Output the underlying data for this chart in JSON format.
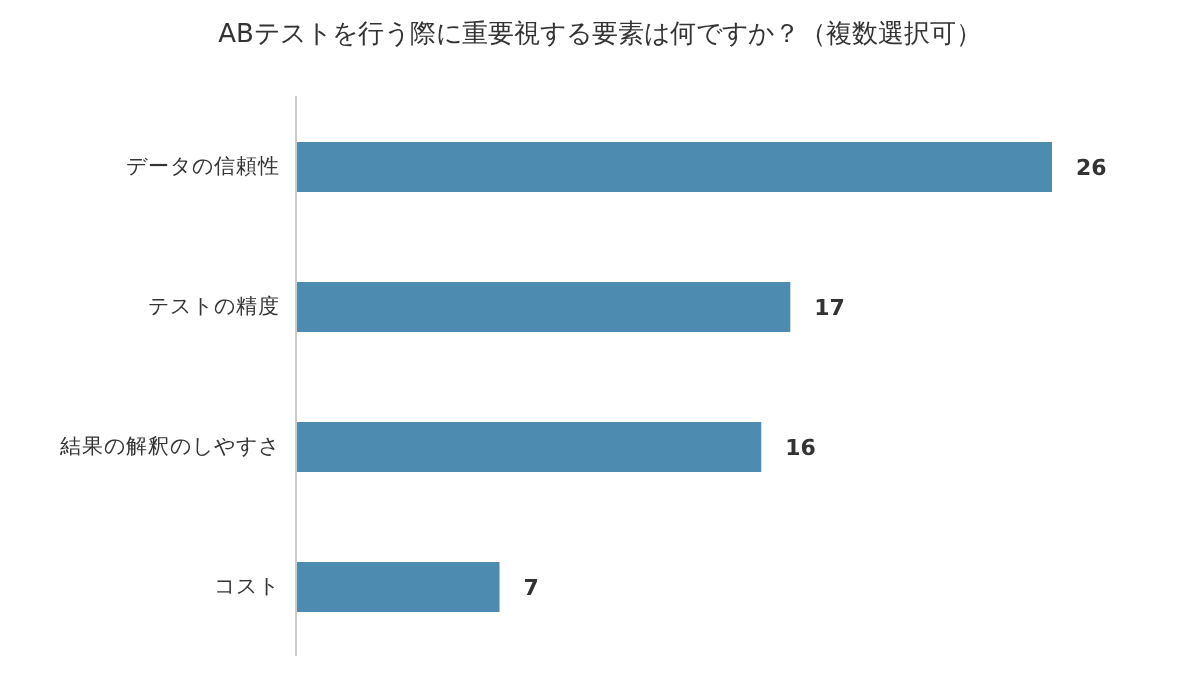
{
  "chart_data": {
    "type": "bar",
    "orientation": "horizontal",
    "title": "ABテストを行う際に重要視する要素は何ですか？（複数選択可）",
    "categories": [
      "データの信頼性",
      "テストの精度",
      "結果の解釈のしやすさ",
      "コスト"
    ],
    "values": [
      26,
      17,
      16,
      7
    ],
    "color": "#4e8bb1",
    "data_labels": true
  }
}
